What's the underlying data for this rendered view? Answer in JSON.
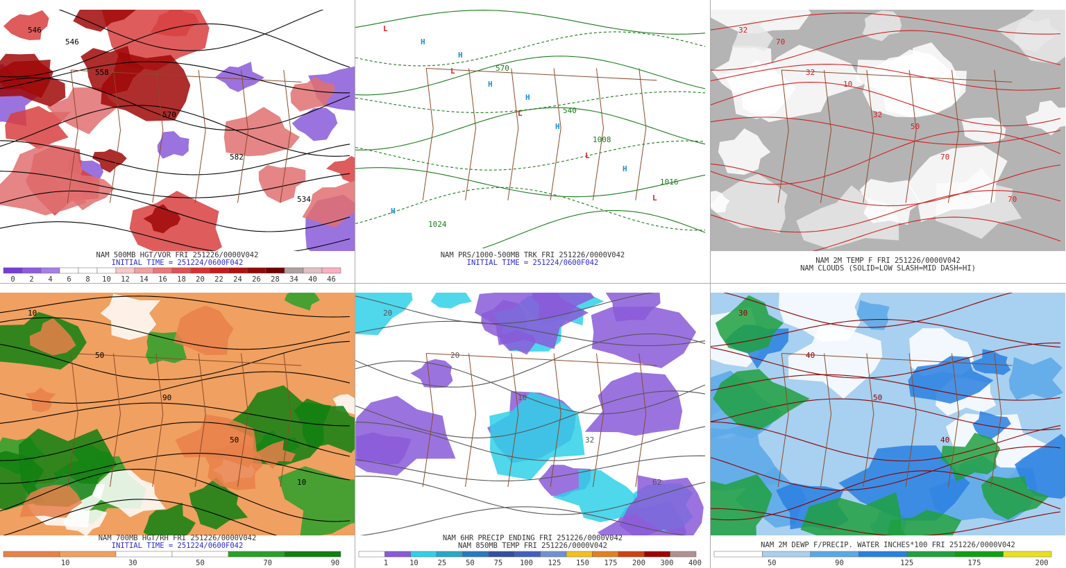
{
  "panels": [
    {
      "captions": [
        "NAM 500MB HGT/VOR FRI 251226/0000V042",
        "INITIAL TIME = 251224/0600F042"
      ],
      "colorbar": {
        "labels": [
          0,
          2,
          4,
          6,
          8,
          10,
          12,
          14,
          16,
          18,
          20,
          22,
          24,
          26,
          28,
          34,
          40,
          46
        ],
        "colors": [
          "#7a3cd8",
          "#8f5ce0",
          "#a57fe6",
          "#ffffff",
          "#ffffff",
          "#ffffff",
          "#f7c8c8",
          "#f0a0a0",
          "#e87878",
          "#e05050",
          "#d83030",
          "#c81818",
          "#b01010",
          "#900808",
          "#700000",
          "#b0a0a0",
          "#e0c0c0",
          "#f8b0c0"
        ]
      },
      "map_labels": [
        "546",
        "558",
        "570",
        "582",
        "534",
        "546"
      ]
    },
    {
      "captions": [
        "NAM PRS/1000-500MB TRK FRI 251226/0000V042",
        "INITIAL TIME = 251224/0600F042"
      ],
      "map_labels": [
        "L",
        "L",
        "L",
        "L",
        "L",
        "H",
        "H",
        "H",
        "H",
        "H",
        "H",
        "H",
        "1008",
        "1016",
        "1024",
        "570",
        "540"
      ]
    },
    {
      "captions": [
        "NAM 2M TEMP F FRI 251226/0000V042",
        "NAM CLOUDS (SOLID=LOW SLASH=MID DASH=HI)"
      ],
      "map_labels": [
        "32",
        "32",
        "32",
        "70",
        "70",
        "70",
        "10",
        "50"
      ]
    },
    {
      "captions": [
        "NAM 700MB HGT/RH FRI 251226/0000V042",
        "INITIAL TIME = 251224/0600F042"
      ],
      "colorbar": {
        "labels": [
          10,
          30,
          50,
          70,
          90
        ],
        "colors": [
          "#e8804a",
          "#f0a060",
          "#ffffff",
          "#ffffff",
          "#2aa02a",
          "#108010"
        ]
      },
      "map_labels": [
        "10",
        "50",
        "90",
        "50",
        "10"
      ]
    },
    {
      "captions": [
        "NAM 6HR PRECIP ENDING FRI 251226/0000V042",
        "NAM 850MB TEMP FRI 251226/0000V042"
      ],
      "colorbar": {
        "labels": [
          1,
          10,
          25,
          50,
          75,
          100,
          125,
          150,
          175,
          200,
          300,
          400
        ],
        "colors": [
          "#ffffff",
          "#8a5ad8",
          "#30d0e8",
          "#28a8c8",
          "#2878c0",
          "#3050a0",
          "#4060c0",
          "#7090d0",
          "#f0c020",
          "#e08020",
          "#d04010",
          "#a00000",
          "#b09090"
        ]
      },
      "map_labels": [
        "20",
        "20",
        "10",
        "32",
        "62"
      ]
    },
    {
      "captions": [
        "NAM 2M DEWP F/PRECIP. WATER INCHES*100 FRI 251226/0000V042"
      ],
      "colorbar": {
        "labels": [
          50,
          90,
          125,
          175,
          200
        ],
        "colors": [
          "#ffffff",
          "#a8d0f0",
          "#5aa8e8",
          "#2a80e0",
          "#20a040",
          "#10a010",
          "#e8e020"
        ]
      },
      "map_labels": [
        "30",
        "40",
        "50",
        "40"
      ]
    }
  ]
}
